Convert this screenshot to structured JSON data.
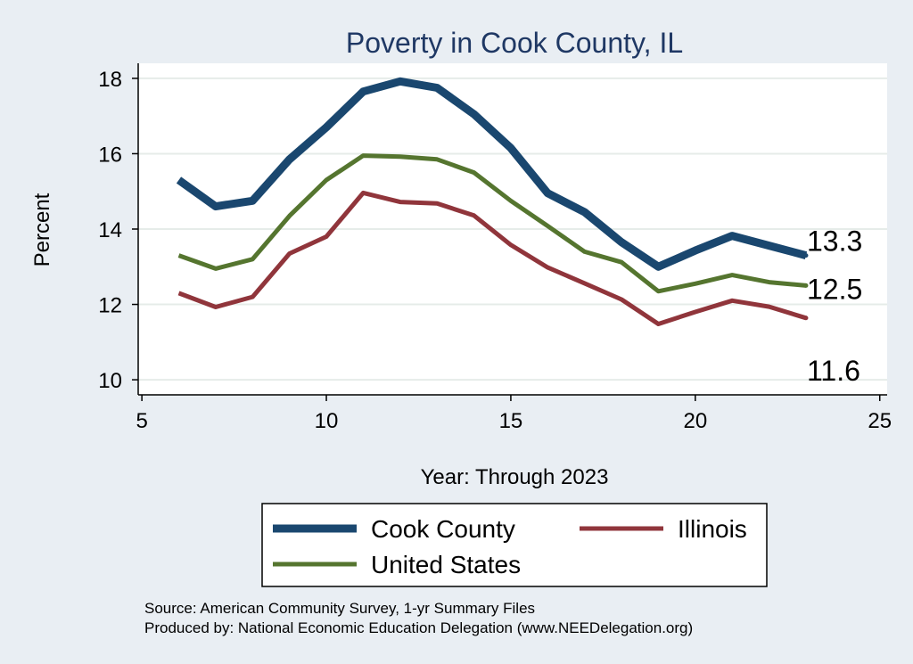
{
  "chart_data": {
    "type": "line",
    "title": "Poverty in Cook County, IL",
    "xlabel": "Year: Through 2023",
    "ylabel": "Percent",
    "xlim": [
      4.9,
      25.2
    ],
    "ylim": [
      9.6,
      18.4
    ],
    "xticks": [
      5,
      10,
      15,
      20,
      25
    ],
    "yticks": [
      10,
      12,
      14,
      16,
      18
    ],
    "grid": true,
    "series": [
      {
        "name": "Cook County",
        "color": "#1a476f",
        "x": [
          6,
          7,
          8,
          9,
          10,
          11,
          12,
          13,
          14,
          15,
          16,
          17,
          18,
          19,
          20,
          21,
          22,
          23
        ],
        "values": [
          15.3,
          14.6,
          14.75,
          15.85,
          16.7,
          17.65,
          17.92,
          17.75,
          17.05,
          16.15,
          14.95,
          14.45,
          13.65,
          13.0,
          13.43,
          13.82,
          13.56,
          13.3
        ],
        "end_label": "13.3"
      },
      {
        "name": "United States",
        "color": "#55752f",
        "x": [
          6,
          7,
          8,
          9,
          10,
          11,
          12,
          13,
          14,
          15,
          16,
          17,
          18,
          19,
          20,
          21,
          22,
          23
        ],
        "values": [
          13.3,
          12.95,
          13.2,
          14.35,
          15.3,
          15.95,
          15.92,
          15.85,
          15.5,
          14.75,
          14.08,
          13.4,
          13.12,
          12.35,
          12.55,
          12.78,
          12.59,
          12.5
        ],
        "end_label": "12.5"
      },
      {
        "name": "Illinois",
        "color": "#90353b",
        "x": [
          6,
          7,
          8,
          9,
          10,
          11,
          12,
          13,
          14,
          15,
          16,
          17,
          18,
          19,
          20,
          21,
          22,
          23
        ],
        "values": [
          12.3,
          11.93,
          12.2,
          13.35,
          13.8,
          14.96,
          14.72,
          14.68,
          14.36,
          13.58,
          12.98,
          12.56,
          12.13,
          11.48,
          11.8,
          12.1,
          11.94,
          11.64
        ],
        "end_label": "11.6"
      }
    ],
    "legend": {
      "position": "bottom",
      "order": [
        "Cook County",
        "Illinois",
        "United States"
      ]
    }
  },
  "footer": {
    "source": "Source: American Community Survey, 1-yr Summary Files",
    "produced_by": "Produced by: National Economic Education Delegation (www.NEEDelegation.org)"
  }
}
